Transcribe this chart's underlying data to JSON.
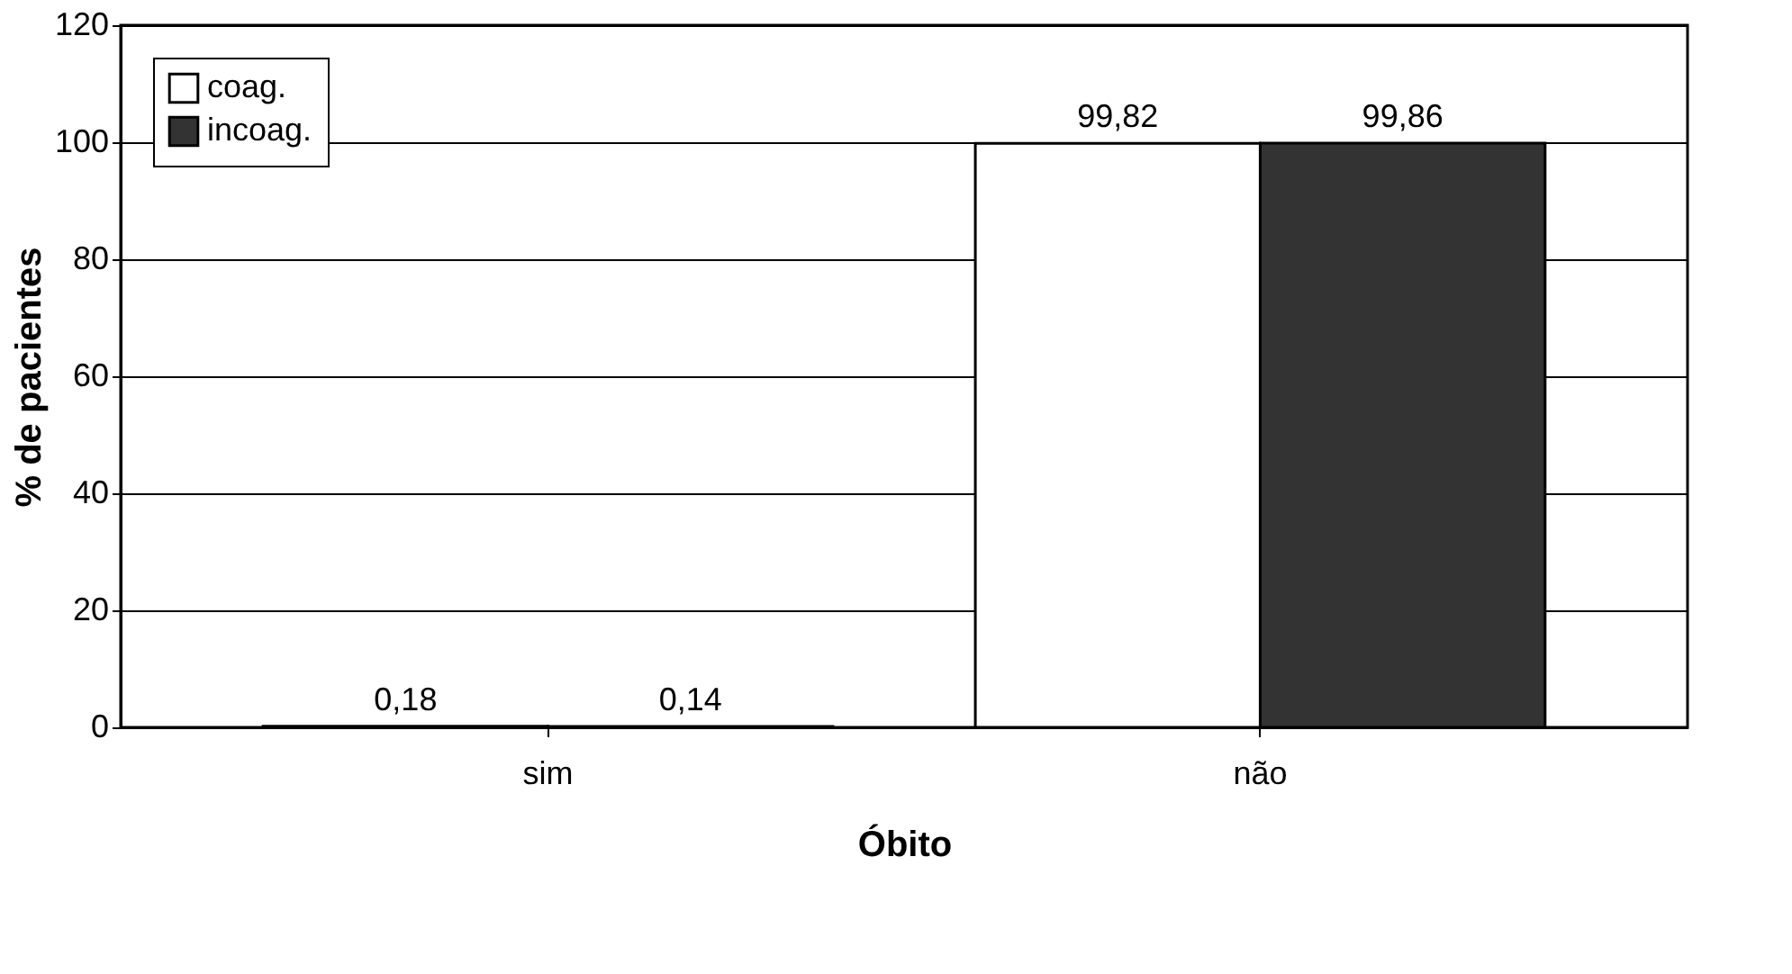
{
  "chart_data": {
    "type": "bar",
    "xlabel": "Óbito",
    "ylabel": "% de pacientes",
    "categories": [
      "sim",
      "não"
    ],
    "series": [
      {
        "name": "coag.",
        "color": "#ffffff",
        "values": [
          0.18,
          99.82
        ],
        "value_labels": [
          "0,18",
          "99,82"
        ]
      },
      {
        "name": "incoag.",
        "color": "#333333",
        "values": [
          0.14,
          99.86
        ],
        "value_labels": [
          "0,14",
          "99,86"
        ]
      }
    ],
    "ylim": [
      0,
      120
    ],
    "yticks": [
      0,
      20,
      40,
      60,
      80,
      100,
      120
    ],
    "grid": "y",
    "legend": "top left"
  }
}
